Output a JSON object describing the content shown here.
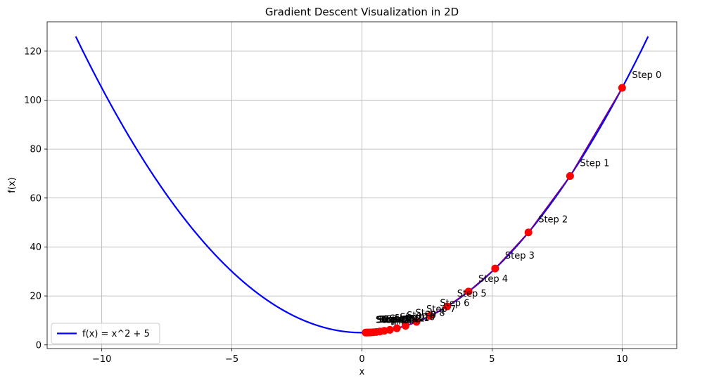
{
  "chart_data": {
    "type": "line",
    "title": "Gradient Descent Visualization in 2D",
    "xlabel": "x",
    "ylabel": "f(x)",
    "xlim": [
      -12.1,
      12.1
    ],
    "ylim": [
      -1.5,
      132
    ],
    "xticks": [
      -10,
      -5,
      0,
      5,
      10
    ],
    "yticks": [
      0,
      20,
      40,
      60,
      80,
      100,
      120
    ],
    "grid": true,
    "legend": {
      "placement": "lower-left",
      "entries": [
        "f(x) = x^2 + 5"
      ]
    },
    "curve": {
      "name": "f(x) = x^2 + 5",
      "color": "#0000ff",
      "x_range": [
        -11,
        11
      ],
      "x": [
        -11,
        -10,
        -9,
        -8,
        -7,
        -6,
        -5,
        -4,
        -3,
        -2,
        -1,
        0,
        1,
        2,
        3,
        4,
        5,
        6,
        7,
        8,
        9,
        10,
        11
      ],
      "y": [
        126,
        105,
        86,
        69,
        54,
        41,
        30,
        21,
        14,
        9,
        6,
        5,
        6,
        9,
        14,
        21,
        30,
        41,
        54,
        69,
        86,
        105,
        126
      ]
    },
    "descent_path": {
      "color": "#ff0000",
      "line_color": "#800080",
      "x": [
        10.0,
        8.0,
        6.4,
        5.12,
        4.096,
        3.277,
        2.621,
        2.097,
        1.678,
        1.342,
        1.074,
        0.859,
        0.687,
        0.55,
        0.44,
        0.352,
        0.281,
        0.225,
        0.18,
        0.144
      ],
      "y": [
        105.0,
        69.0,
        45.96,
        31.21,
        21.78,
        15.74,
        11.87,
        9.4,
        7.81,
        6.8,
        6.15,
        5.74,
        5.47,
        5.3,
        5.19,
        5.12,
        5.08,
        5.05,
        5.03,
        5.02
      ],
      "labels": [
        "Step 0",
        "Step 1",
        "Step 2",
        "Step 3",
        "Step 4",
        "Step 5",
        "Step 6",
        "Step 7",
        "Step 8",
        "Step 9",
        "Step 10",
        "Step 11",
        "Step 12",
        "Step 13",
        "Step 14",
        "Step 15",
        "Step 16",
        "Step 17",
        "Step 18",
        "Step 19"
      ]
    }
  }
}
